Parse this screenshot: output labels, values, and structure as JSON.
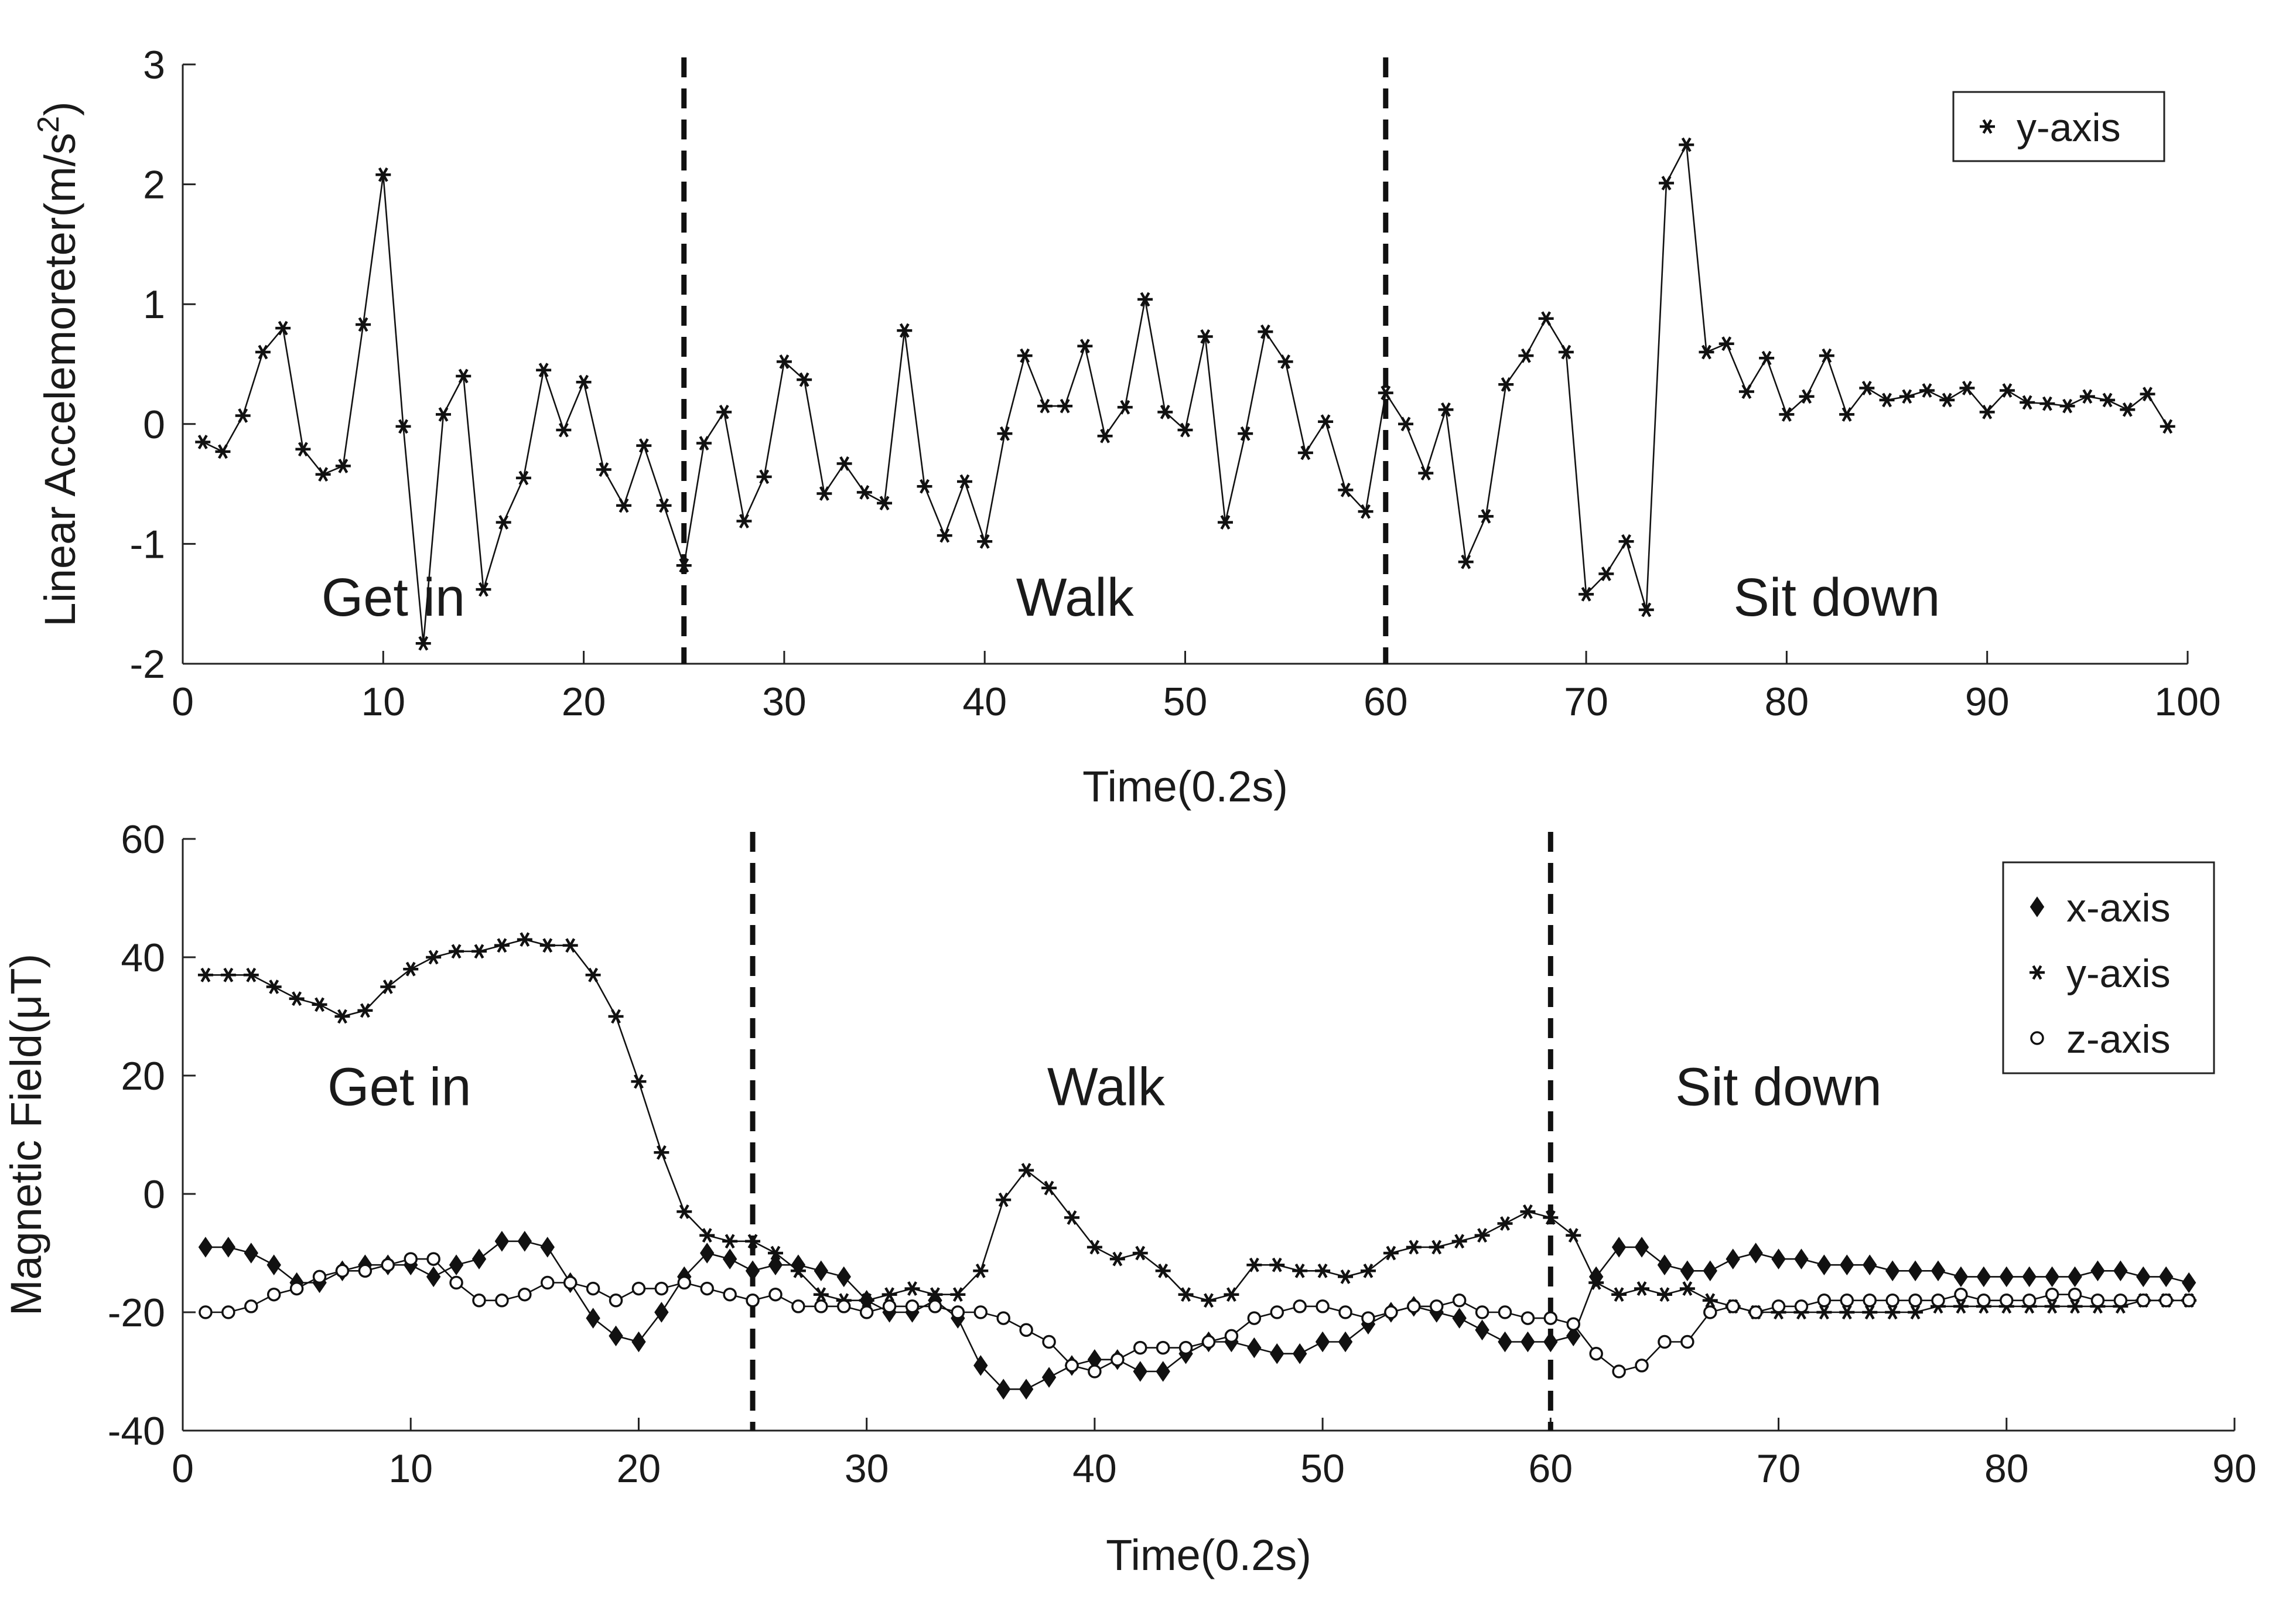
{
  "chart_data": [
    {
      "type": "line",
      "ylabel": "Linear Accelemoreter(m/s",
      "ylabel_sup": "2",
      "ylabel_close": ")",
      "xlabel": "Time(0.2s)",
      "xlim": [
        0,
        100
      ],
      "ylim": [
        -2,
        3
      ],
      "xticks": [
        "0",
        "10",
        "20",
        "30",
        "40",
        "50",
        "60",
        "70",
        "80",
        "90",
        "100"
      ],
      "yticks": [
        "-2",
        "-1",
        "0",
        "1",
        "2",
        "3"
      ],
      "grid": false,
      "legend_position": "top-right",
      "dividers_x": [
        25,
        60
      ],
      "annotations": [
        {
          "text": "Get in",
          "x": 10.5,
          "y": -1.6
        },
        {
          "text": "Walk",
          "x": 44.5,
          "y": -1.6
        },
        {
          "text": "Sit down",
          "x": 82.5,
          "y": -1.6
        }
      ],
      "series": [
        {
          "name": "y-axis",
          "marker": "asterisk",
          "x": [
            1,
            2,
            3,
            4,
            5,
            6,
            7,
            8,
            9,
            10,
            11,
            12,
            13,
            14,
            15,
            16,
            17,
            18,
            19,
            20,
            21,
            22,
            23,
            24,
            25,
            26,
            27,
            28,
            29,
            30,
            31,
            32,
            33,
            34,
            35,
            36,
            37,
            38,
            39,
            40,
            41,
            42,
            43,
            44,
            45,
            46,
            47,
            48,
            49,
            50,
            51,
            52,
            53,
            54,
            55,
            56,
            57,
            58,
            59,
            60,
            61,
            62,
            63,
            64,
            65,
            66,
            67,
            68,
            69,
            70,
            71,
            72,
            73,
            74,
            75,
            76,
            77,
            78,
            79,
            80,
            81,
            82,
            83,
            84,
            85,
            86,
            87,
            88,
            89,
            90,
            91,
            92,
            93,
            94,
            95,
            96,
            97,
            98,
            99
          ],
          "values": [
            -0.15,
            -0.23,
            0.07,
            0.6,
            0.8,
            -0.21,
            -0.42,
            -0.35,
            0.83,
            2.08,
            -0.02,
            -1.83,
            0.08,
            0.4,
            -1.38,
            -0.82,
            -0.45,
            0.45,
            -0.05,
            0.35,
            -0.38,
            -0.68,
            -0.18,
            -0.68,
            -1.18,
            -0.16,
            0.1,
            -0.81,
            -0.44,
            0.52,
            0.37,
            -0.58,
            -0.33,
            -0.57,
            -0.66,
            0.78,
            -0.52,
            -0.93,
            -0.48,
            -0.98,
            -0.08,
            0.57,
            0.15,
            0.15,
            0.65,
            -0.1,
            0.14,
            1.04,
            0.1,
            -0.05,
            0.73,
            -0.82,
            -0.08,
            0.77,
            0.52,
            -0.24,
            0.02,
            -0.55,
            -0.73,
            0.26,
            0.0,
            -0.41,
            0.12,
            -1.15,
            -0.77,
            0.33,
            0.57,
            0.88,
            0.6,
            -1.42,
            -1.25,
            -0.98,
            -1.55,
            2.01,
            2.33,
            0.6,
            0.67,
            0.27,
            0.55,
            0.08,
            0.23,
            0.57,
            0.08,
            0.3,
            0.2,
            0.23,
            0.28,
            0.2,
            0.3,
            0.1,
            0.28,
            0.18,
            0.17,
            0.15,
            0.23,
            0.2,
            0.12,
            0.25,
            -0.02
          ]
        }
      ]
    },
    {
      "type": "line",
      "ylabel": "Magnetic Field(μT)",
      "xlabel": "Time(0.2s)",
      "xlim": [
        0,
        90
      ],
      "ylim": [
        -40,
        60
      ],
      "xticks": [
        "0",
        "10",
        "20",
        "30",
        "40",
        "50",
        "60",
        "70",
        "80",
        "90"
      ],
      "yticks": [
        "-40",
        "-20",
        "0",
        "20",
        "40",
        "60"
      ],
      "grid": false,
      "legend_position": "top-right",
      "dividers_x": [
        25,
        60
      ],
      "annotations": [
        {
          "text": "Get in",
          "x": 9.5,
          "y": 15
        },
        {
          "text": "Walk",
          "x": 40.5,
          "y": 15
        },
        {
          "text": "Sit down",
          "x": 70,
          "y": 15
        }
      ],
      "series": [
        {
          "name": "x-axis",
          "marker": "diamond",
          "x": [
            1,
            2,
            3,
            4,
            5,
            6,
            7,
            8,
            9,
            10,
            11,
            12,
            13,
            14,
            15,
            16,
            17,
            18,
            19,
            20,
            21,
            22,
            23,
            24,
            25,
            26,
            27,
            28,
            29,
            30,
            31,
            32,
            33,
            34,
            35,
            36,
            37,
            38,
            39,
            40,
            41,
            42,
            43,
            44,
            45,
            46,
            47,
            48,
            49,
            50,
            51,
            52,
            53,
            54,
            55,
            56,
            57,
            58,
            59,
            60,
            61,
            62,
            63,
            64,
            65,
            66,
            67,
            68,
            69,
            70,
            71,
            72,
            73,
            74,
            75,
            76,
            77,
            78,
            79,
            80,
            81,
            82,
            83,
            84,
            85,
            86,
            87,
            88
          ],
          "values": [
            -9,
            -9,
            -10,
            -12,
            -15,
            -15,
            -13,
            -12,
            -12,
            -12,
            -14,
            -12,
            -11,
            -8,
            -8,
            -9,
            -15,
            -21,
            -24,
            -25,
            -20,
            -14,
            -10,
            -11,
            -13,
            -12,
            -12,
            -13,
            -14,
            -18,
            -20,
            -20,
            -18,
            -21,
            -29,
            -33,
            -33,
            -31,
            -29,
            -28,
            -28,
            -30,
            -30,
            -27,
            -25,
            -25,
            -26,
            -27,
            -27,
            -25,
            -25,
            -22,
            -20,
            -19,
            -20,
            -21,
            -23,
            -25,
            -25,
            -25,
            -24,
            -14,
            -9,
            -9,
            -12,
            -13,
            -13,
            -11,
            -10,
            -11,
            -11,
            -12,
            -12,
            -12,
            -13,
            -13,
            -13,
            -14,
            -14,
            -14,
            -14,
            -14,
            -14,
            -13,
            -13,
            -14,
            -14,
            -15
          ]
        },
        {
          "name": "y-axis",
          "marker": "asterisk",
          "x": [
            1,
            2,
            3,
            4,
            5,
            6,
            7,
            8,
            9,
            10,
            11,
            12,
            13,
            14,
            15,
            16,
            17,
            18,
            19,
            20,
            21,
            22,
            23,
            24,
            25,
            26,
            27,
            28,
            29,
            30,
            31,
            32,
            33,
            34,
            35,
            36,
            37,
            38,
            39,
            40,
            41,
            42,
            43,
            44,
            45,
            46,
            47,
            48,
            49,
            50,
            51,
            52,
            53,
            54,
            55,
            56,
            57,
            58,
            59,
            60,
            61,
            62,
            63,
            64,
            65,
            66,
            67,
            68,
            69,
            70,
            71,
            72,
            73,
            74,
            75,
            76,
            77,
            78,
            79,
            80,
            81,
            82,
            83,
            84,
            85,
            86,
            87,
            88
          ],
          "values": [
            37,
            37,
            37,
            35,
            33,
            32,
            30,
            31,
            35,
            38,
            40,
            41,
            41,
            42,
            43,
            42,
            42,
            37,
            30,
            19,
            7,
            -3,
            -7,
            -8,
            -8,
            -10,
            -13,
            -17,
            -18,
            -18,
            -17,
            -16,
            -17,
            -17,
            -13,
            -1,
            4,
            1,
            -4,
            -9,
            -11,
            -10,
            -13,
            -17,
            -18,
            -17,
            -12,
            -12,
            -13,
            -13,
            -14,
            -13,
            -10,
            -9,
            -9,
            -8,
            -7,
            -5,
            -3,
            -4,
            -7,
            -15,
            -17,
            -16,
            -17,
            -16,
            -18,
            -19,
            -20,
            -20,
            -20,
            -20,
            -20,
            -20,
            -20,
            -20,
            -19,
            -19,
            -19,
            -19,
            -19,
            -19,
            -19,
            -19,
            -19,
            -18,
            -18,
            -18
          ]
        },
        {
          "name": "z-axis",
          "marker": "circle",
          "x": [
            1,
            2,
            3,
            4,
            5,
            6,
            7,
            8,
            9,
            10,
            11,
            12,
            13,
            14,
            15,
            16,
            17,
            18,
            19,
            20,
            21,
            22,
            23,
            24,
            25,
            26,
            27,
            28,
            29,
            30,
            31,
            32,
            33,
            34,
            35,
            36,
            37,
            38,
            39,
            40,
            41,
            42,
            43,
            44,
            45,
            46,
            47,
            48,
            49,
            50,
            51,
            52,
            53,
            54,
            55,
            56,
            57,
            58,
            59,
            60,
            61,
            62,
            63,
            64,
            65,
            66,
            67,
            68,
            69,
            70,
            71,
            72,
            73,
            74,
            75,
            76,
            77,
            78,
            79,
            80,
            81,
            82,
            83,
            84,
            85,
            86,
            87,
            88
          ],
          "values": [
            -20,
            -20,
            -19,
            -17,
            -16,
            -14,
            -13,
            -13,
            -12,
            -11,
            -11,
            -15,
            -18,
            -18,
            -17,
            -15,
            -15,
            -16,
            -18,
            -16,
            -16,
            -15,
            -16,
            -17,
            -18,
            -17,
            -19,
            -19,
            -19,
            -20,
            -19,
            -19,
            -19,
            -20,
            -20,
            -21,
            -23,
            -25,
            -29,
            -30,
            -28,
            -26,
            -26,
            -26,
            -25,
            -24,
            -21,
            -20,
            -19,
            -19,
            -20,
            -21,
            -20,
            -19,
            -19,
            -18,
            -20,
            -20,
            -21,
            -21,
            -22,
            -27,
            -30,
            -29,
            -25,
            -25,
            -20,
            -19,
            -20,
            -19,
            -19,
            -18,
            -18,
            -18,
            -18,
            -18,
            -18,
            -17,
            -18,
            -18,
            -18,
            -17,
            -17,
            -18,
            -18,
            -18,
            -18,
            -18
          ]
        }
      ]
    }
  ]
}
